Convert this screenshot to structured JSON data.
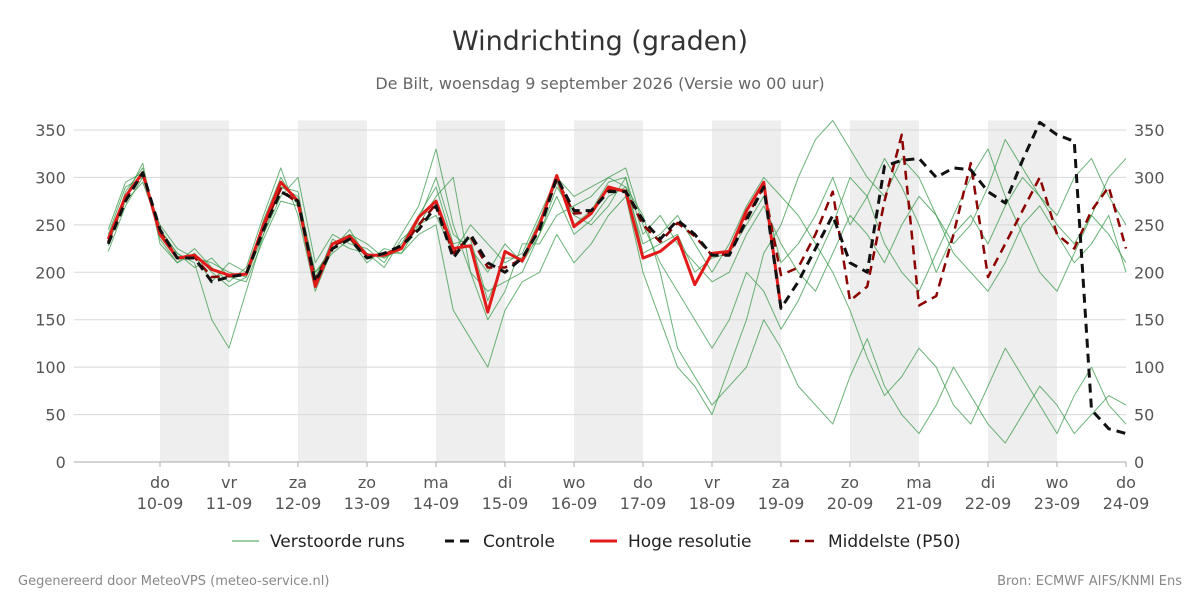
{
  "chart_data": {
    "type": "line",
    "title": "Windrichting (graden)",
    "subtitle": "De Bilt, woensdag  9 september 2026 (Versie wo 00 uur)",
    "footer_left": "Gegenereerd door MeteoVPS (meteo-service.nl)",
    "footer_right": "Bron: ECMWF AIFS/KNMI Ens",
    "xlim": [
      -1.25,
      14
    ],
    "ylim": [
      0,
      360
    ],
    "yticks": [
      0,
      50,
      100,
      150,
      200,
      250,
      300,
      350
    ],
    "xticks": [
      {
        "value": 0,
        "label": "do\n10-09"
      },
      {
        "value": 1,
        "label": "vr\n11-09"
      },
      {
        "value": 2,
        "label": "za\n12-09"
      },
      {
        "value": 3,
        "label": "zo\n13-09"
      },
      {
        "value": 4,
        "label": "ma\n14-09"
      },
      {
        "value": 5,
        "label": "di\n15-09"
      },
      {
        "value": 6,
        "label": "wo\n16-09"
      },
      {
        "value": 7,
        "label": "do\n17-09"
      },
      {
        "value": 8,
        "label": "vr\n18-09"
      },
      {
        "value": 9,
        "label": "za\n19-09"
      },
      {
        "value": 10,
        "label": "zo\n20-09"
      },
      {
        "value": 11,
        "label": "ma\n21-09"
      },
      {
        "value": 12,
        "label": "di\n22-09"
      },
      {
        "value": 13,
        "label": "wo\n23-09"
      },
      {
        "value": 14,
        "label": "do\n24-09"
      }
    ],
    "shaded_days": [
      0,
      2,
      4,
      6,
      8,
      10,
      12
    ],
    "grid": true,
    "x": [
      -0.75,
      -0.5,
      -0.25,
      0,
      0.25,
      0.5,
      0.75,
      1,
      1.25,
      1.5,
      1.75,
      2,
      2.25,
      2.5,
      2.75,
      3,
      3.25,
      3.5,
      3.75,
      4,
      4.25,
      4.5,
      4.75,
      5,
      5.25,
      5.5,
      5.75,
      6,
      6.25,
      6.5,
      6.75,
      7,
      7.25,
      7.5,
      7.75,
      8,
      8.25,
      8.5,
      8.75,
      9,
      9.25,
      9.5,
      9.75,
      10,
      10.25,
      10.5,
      10.75,
      11,
      11.25,
      11.5,
      11.75,
      12,
      12.25,
      12.5,
      12.75,
      13,
      13.25,
      13.5,
      13.75,
      14
    ],
    "ensemble": {
      "name": "Verstoorde runs",
      "color": "#3a9a4a",
      "members": [
        [
          228,
          285,
          310,
          235,
          210,
          220,
          200,
          185,
          195,
          255,
          300,
          270,
          195,
          230,
          240,
          220,
          215,
          230,
          260,
          290,
          230,
          235,
          170,
          215,
          215,
          255,
          295,
          250,
          265,
          295,
          300,
          220,
          230,
          240,
          200,
          215,
          220,
          250,
          280,
          210,
          230,
          260,
          300,
          250,
          280,
          320,
          290,
          250,
          200,
          240,
          260,
          230,
          270,
          300,
          280,
          250,
          230,
          260,
          240,
          210
        ],
        [
          240,
          290,
          300,
          245,
          220,
          210,
          150,
          120,
          180,
          240,
          290,
          280,
          200,
          220,
          235,
          210,
          225,
          220,
          250,
          280,
          300,
          200,
          180,
          190,
          200,
          240,
          280,
          240,
          255,
          280,
          290,
          260,
          200,
          120,
          90,
          60,
          80,
          100,
          150,
          120,
          80,
          60,
          40,
          90,
          130,
          80,
          50,
          30,
          60,
          100,
          70,
          40,
          20,
          50,
          80,
          60,
          30,
          50,
          70,
          60
        ],
        [
          222,
          270,
          300,
          250,
          225,
          215,
          210,
          200,
          195,
          240,
          280,
          300,
          210,
          240,
          230,
          225,
          210,
          240,
          270,
          330,
          250,
          200,
          150,
          180,
          230,
          230,
          260,
          270,
          280,
          300,
          310,
          250,
          210,
          180,
          150,
          120,
          150,
          200,
          180,
          140,
          170,
          210,
          250,
          300,
          280,
          230,
          200,
          180,
          220,
          260,
          300,
          330,
          280,
          240,
          200,
          180,
          220,
          260,
          300,
          320
        ],
        [
          235,
          280,
          315,
          230,
          210,
          225,
          205,
          190,
          205,
          260,
          310,
          260,
          180,
          225,
          245,
          215,
          220,
          220,
          240,
          250,
          160,
          130,
          100,
          160,
          190,
          200,
          240,
          210,
          230,
          260,
          280,
          200,
          150,
          100,
          80,
          50,
          100,
          150,
          220,
          250,
          300,
          340,
          360,
          330,
          300,
          280,
          320,
          300,
          260,
          230,
          250,
          290,
          340,
          310,
          280,
          260,
          300,
          320,
          280,
          250
        ],
        [
          245,
          295,
          305,
          240,
          215,
          218,
          190,
          210,
          200,
          250,
          290,
          285,
          190,
          235,
          225,
          220,
          205,
          235,
          250,
          260,
          220,
          250,
          230,
          210,
          220,
          260,
          300,
          280,
          290,
          300,
          290,
          230,
          240,
          260,
          230,
          200,
          230,
          270,
          300,
          280,
          260,
          230,
          200,
          160,
          110,
          70,
          90,
          120,
          100,
          60,
          40,
          80,
          120,
          90,
          60,
          30,
          70,
          100,
          60,
          40
        ],
        [
          230,
          275,
          295,
          245,
          220,
          205,
          215,
          195,
          190,
          235,
          275,
          270,
          200,
          225,
          240,
          230,
          215,
          225,
          255,
          300,
          240,
          225,
          200,
          230,
          210,
          240,
          290,
          260,
          250,
          270,
          300,
          240,
          260,
          230,
          210,
          190,
          200,
          240,
          270,
          230,
          200,
          180,
          220,
          260,
          240,
          210,
          250,
          280,
          260,
          220,
          200,
          180,
          210,
          250,
          270,
          240,
          210,
          230,
          260,
          200
        ]
      ]
    },
    "series": [
      {
        "name": "Controle",
        "color": "#111111",
        "dashed": true,
        "width": 3,
        "values": [
          230,
          275,
          305,
          245,
          215,
          215,
          190,
          195,
          198,
          245,
          285,
          275,
          190,
          225,
          235,
          215,
          220,
          228,
          245,
          270,
          215,
          240,
          210,
          200,
          215,
          245,
          300,
          265,
          265,
          285,
          285,
          255,
          235,
          255,
          240,
          218,
          218,
          255,
          290,
          162,
          190,
          225,
          260,
          210,
          200,
          312,
          318,
          320,
          300,
          310,
          308,
          285,
          273,
          318,
          358,
          345,
          338,
          55,
          35,
          30
        ]
      },
      {
        "name": "Hoge resolutie",
        "color": "#e21a1a",
        "dashed": false,
        "width": 3,
        "values": [
          235,
          280,
          305,
          240,
          215,
          218,
          203,
          197,
          198,
          250,
          295,
          275,
          185,
          230,
          238,
          218,
          218,
          225,
          258,
          275,
          225,
          228,
          158,
          222,
          212,
          250,
          302,
          248,
          262,
          290,
          285,
          215,
          222,
          237,
          187,
          220,
          222,
          265,
          295,
          162,
          null,
          null,
          null,
          null,
          null,
          null,
          null,
          null,
          null,
          null,
          null,
          null,
          null,
          null,
          null,
          null,
          null,
          null,
          null,
          null
        ]
      },
      {
        "name": "Middelste (P50)",
        "color": "#8b0000",
        "dashed": true,
        "width": 2.5,
        "values": [
          232,
          278,
          303,
          243,
          215,
          216,
          195,
          196,
          198,
          248,
          288,
          272,
          192,
          228,
          236,
          217,
          219,
          226,
          250,
          272,
          220,
          238,
          205,
          205,
          214,
          246,
          298,
          262,
          263,
          287,
          286,
          250,
          232,
          252,
          238,
          218,
          219,
          258,
          290,
          197,
          205,
          240,
          285,
          170,
          185,
          275,
          345,
          165,
          175,
          240,
          315,
          195,
          230,
          265,
          300,
          240,
          225,
          265,
          290,
          225
        ]
      }
    ]
  }
}
